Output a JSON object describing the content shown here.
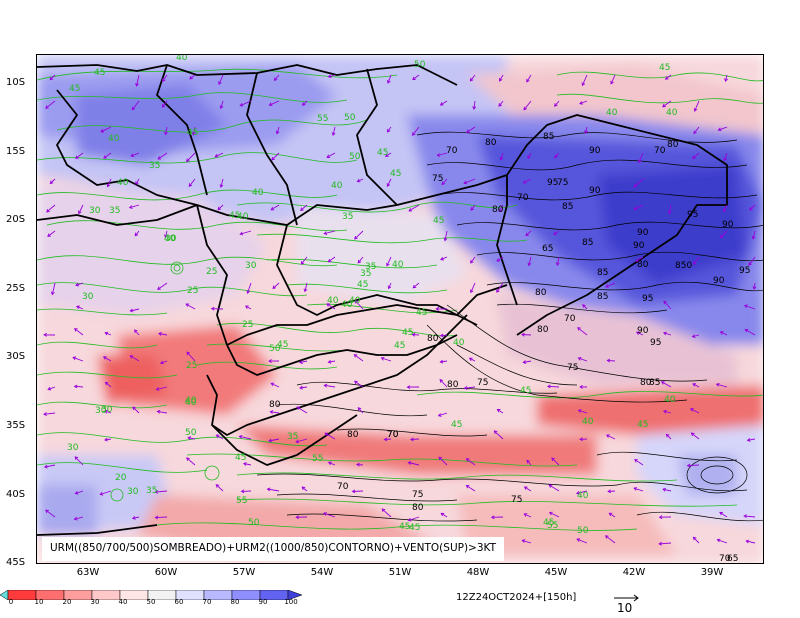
{
  "caption": "URM((850/700/500)SOMBREADO)+URM2((1000/850)CONTORNO)+VENTO(SUP)>3KT",
  "timestamp": "12Z24OCT2024+[150h]",
  "vector_reference": "10",
  "latitude_labels": [
    "10S",
    "15S",
    "20S",
    "25S",
    "30S",
    "35S",
    "40S",
    "45S"
  ],
  "longitude_labels": [
    "63W",
    "60W",
    "57W",
    "54W",
    "51W",
    "48W",
    "45W",
    "42W",
    "39W"
  ],
  "colorbar": {
    "labels": [
      "0",
      "10",
      "20",
      "30",
      "40",
      "50",
      "60",
      "70",
      "80",
      "90",
      "100"
    ],
    "colors": [
      "#ff3b3b",
      "#ff6f6f",
      "#ff9e9e",
      "#ffc9c9",
      "#ffe6e6",
      "#f2f2f2",
      "#e0e0ff",
      "#b9b9ff",
      "#8f8fff",
      "#6363f2",
      "#3f3fd9"
    ]
  },
  "colors": {
    "contour_green": "#22bb22",
    "contour_black": "#000000",
    "vector_purple": "#9900dd",
    "coast_black": "#000000"
  },
  "contour_labels": {
    "green": [
      "45",
      "45",
      "40",
      "45",
      "40",
      "50",
      "45",
      "40",
      "55",
      "40",
      "50",
      "45",
      "35",
      "45",
      "40",
      "35",
      "40",
      "30",
      "40",
      "40",
      "45",
      "35",
      "40",
      "30",
      "25",
      "25",
      "30",
      "35",
      "40",
      "45",
      "45",
      "30",
      "25",
      "25",
      "50",
      "45",
      "40",
      "30",
      "30",
      "40",
      "50",
      "55",
      "45",
      "20",
      "30",
      "35",
      "45",
      "40",
      "55",
      "40",
      "50",
      "45",
      "45",
      "55",
      "50",
      "45",
      "45",
      "35",
      "50",
      "40",
      "35",
      "40",
      "40",
      "45",
      "45",
      "40",
      "30",
      "40",
      "45",
      "45"
    ],
    "black": [
      "70",
      "80",
      "75",
      "85",
      "90",
      "70",
      "80",
      "75",
      "95",
      "90",
      "85",
      "80",
      "70",
      "65",
      "85",
      "90",
      "90",
      "95",
      "90",
      "95",
      "85",
      "80",
      "850",
      "90",
      "95",
      "80",
      "85",
      "80",
      "70",
      "80",
      "90",
      "95",
      "75",
      "80",
      "85",
      "80",
      "75",
      "80",
      "70",
      "80",
      "70",
      "70",
      "75",
      "80",
      "75",
      "70",
      "65"
    ]
  }
}
